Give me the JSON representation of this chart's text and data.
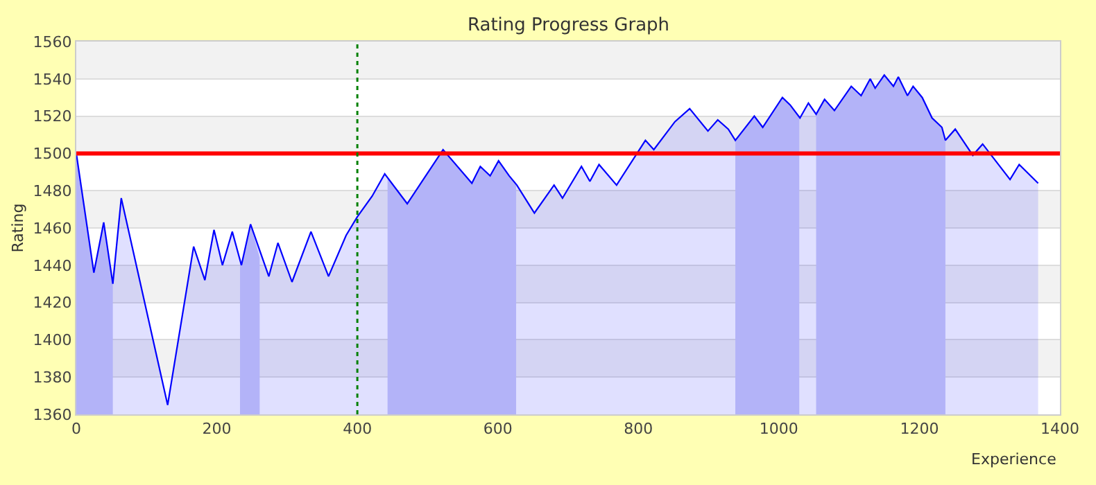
{
  "chart_data": {
    "type": "area",
    "title": "Rating Progress Graph",
    "xlabel": "Experience",
    "ylabel": "Rating",
    "series": [
      {
        "color": "#0000ff",
        "x": [
          0,
          25,
          39,
          52,
          64,
          130,
          167,
          183,
          196,
          208,
          222,
          235,
          248,
          274,
          287,
          307,
          334,
          359,
          384,
          400,
          421,
          439,
          471,
          522,
          563,
          575,
          589,
          601,
          616,
          627,
          652,
          680,
          692,
          719,
          731,
          744,
          769,
          810,
          822,
          852,
          873,
          899,
          913,
          928,
          938,
          965,
          977,
          1005,
          1016,
          1030,
          1042,
          1053,
          1065,
          1079,
          1103,
          1117,
          1130,
          1137,
          1150,
          1163,
          1170,
          1183,
          1191,
          1204,
          1218,
          1232,
          1237,
          1251,
          1276,
          1290,
          1329,
          1342,
          1369
        ],
        "values": [
          1500,
          1436,
          1463,
          1430,
          1476,
          1365,
          1450,
          1432,
          1459,
          1440,
          1458,
          1440,
          1462,
          1434,
          1452,
          1431,
          1458,
          1434,
          1456,
          1466,
          1477,
          1489,
          1473,
          1502,
          1484,
          1493,
          1488,
          1496,
          1488,
          1483,
          1468,
          1483,
          1476,
          1493,
          1485,
          1494,
          1483,
          1507,
          1502,
          1517,
          1524,
          1512,
          1518,
          1513,
          1507,
          1520,
          1514,
          1530,
          1526,
          1519,
          1527,
          1521,
          1529,
          1523,
          1536,
          1531,
          1540,
          1535,
          1542,
          1536,
          1541,
          1531,
          1536,
          1530,
          1519,
          1514,
          1507,
          1513,
          1499,
          1505,
          1486,
          1494,
          1484
        ]
      },
      {
        "type": "area",
        "color": "#ccccf8",
        "x": [
          0,
          25,
          39,
          52
        ],
        "values": [
          1500,
          1436,
          1463,
          1430
        ]
      },
      {
        "type": "area",
        "color": "#ccccf8",
        "x": [
          233,
          235,
          248,
          261
        ],
        "values": [
          1442,
          1440,
          1462,
          1444
        ]
      },
      {
        "type": "area",
        "color": "#ccccf8",
        "x": [
          443,
          471,
          522,
          563,
          575,
          589,
          601,
          616,
          626
        ],
        "values": [
          1487,
          1473,
          1502,
          1484,
          1493,
          1488,
          1496,
          1488,
          1484
        ]
      },
      {
        "type": "area",
        "color": "#ccccf8",
        "x": [
          938,
          965,
          977,
          1005,
          1016,
          1029
        ],
        "values": [
          1507,
          1520,
          1514,
          1530,
          1526,
          1519
        ]
      },
      {
        "type": "area",
        "color": "#ccccf8",
        "x": [
          1053,
          1065,
          1079,
          1103,
          1117,
          1130,
          1137,
          1150,
          1163,
          1170,
          1183,
          1191,
          1204,
          1218,
          1232,
          1237
        ],
        "values": [
          1521,
          1529,
          1523,
          1536,
          1531,
          1540,
          1535,
          1542,
          1536,
          1541,
          1531,
          1536,
          1530,
          1519,
          1514,
          1507
        ]
      }
    ],
    "xlim": [
      0,
      1400
    ],
    "xticks": [
      0,
      200,
      400,
      600,
      800,
      1000,
      1200,
      1400
    ],
    "ylim": [
      1360,
      1560
    ],
    "yticks": [
      1360,
      1380,
      1400,
      1420,
      1440,
      1460,
      1480,
      1500,
      1520,
      1540,
      1560
    ],
    "ref_lines": [
      {
        "axis": "y",
        "value": 1500,
        "color": "#ff0000",
        "line_style": "solid"
      },
      {
        "axis": "x",
        "value": 400,
        "color": "#008000",
        "line_style": "dotted"
      }
    ],
    "grid": "y"
  }
}
